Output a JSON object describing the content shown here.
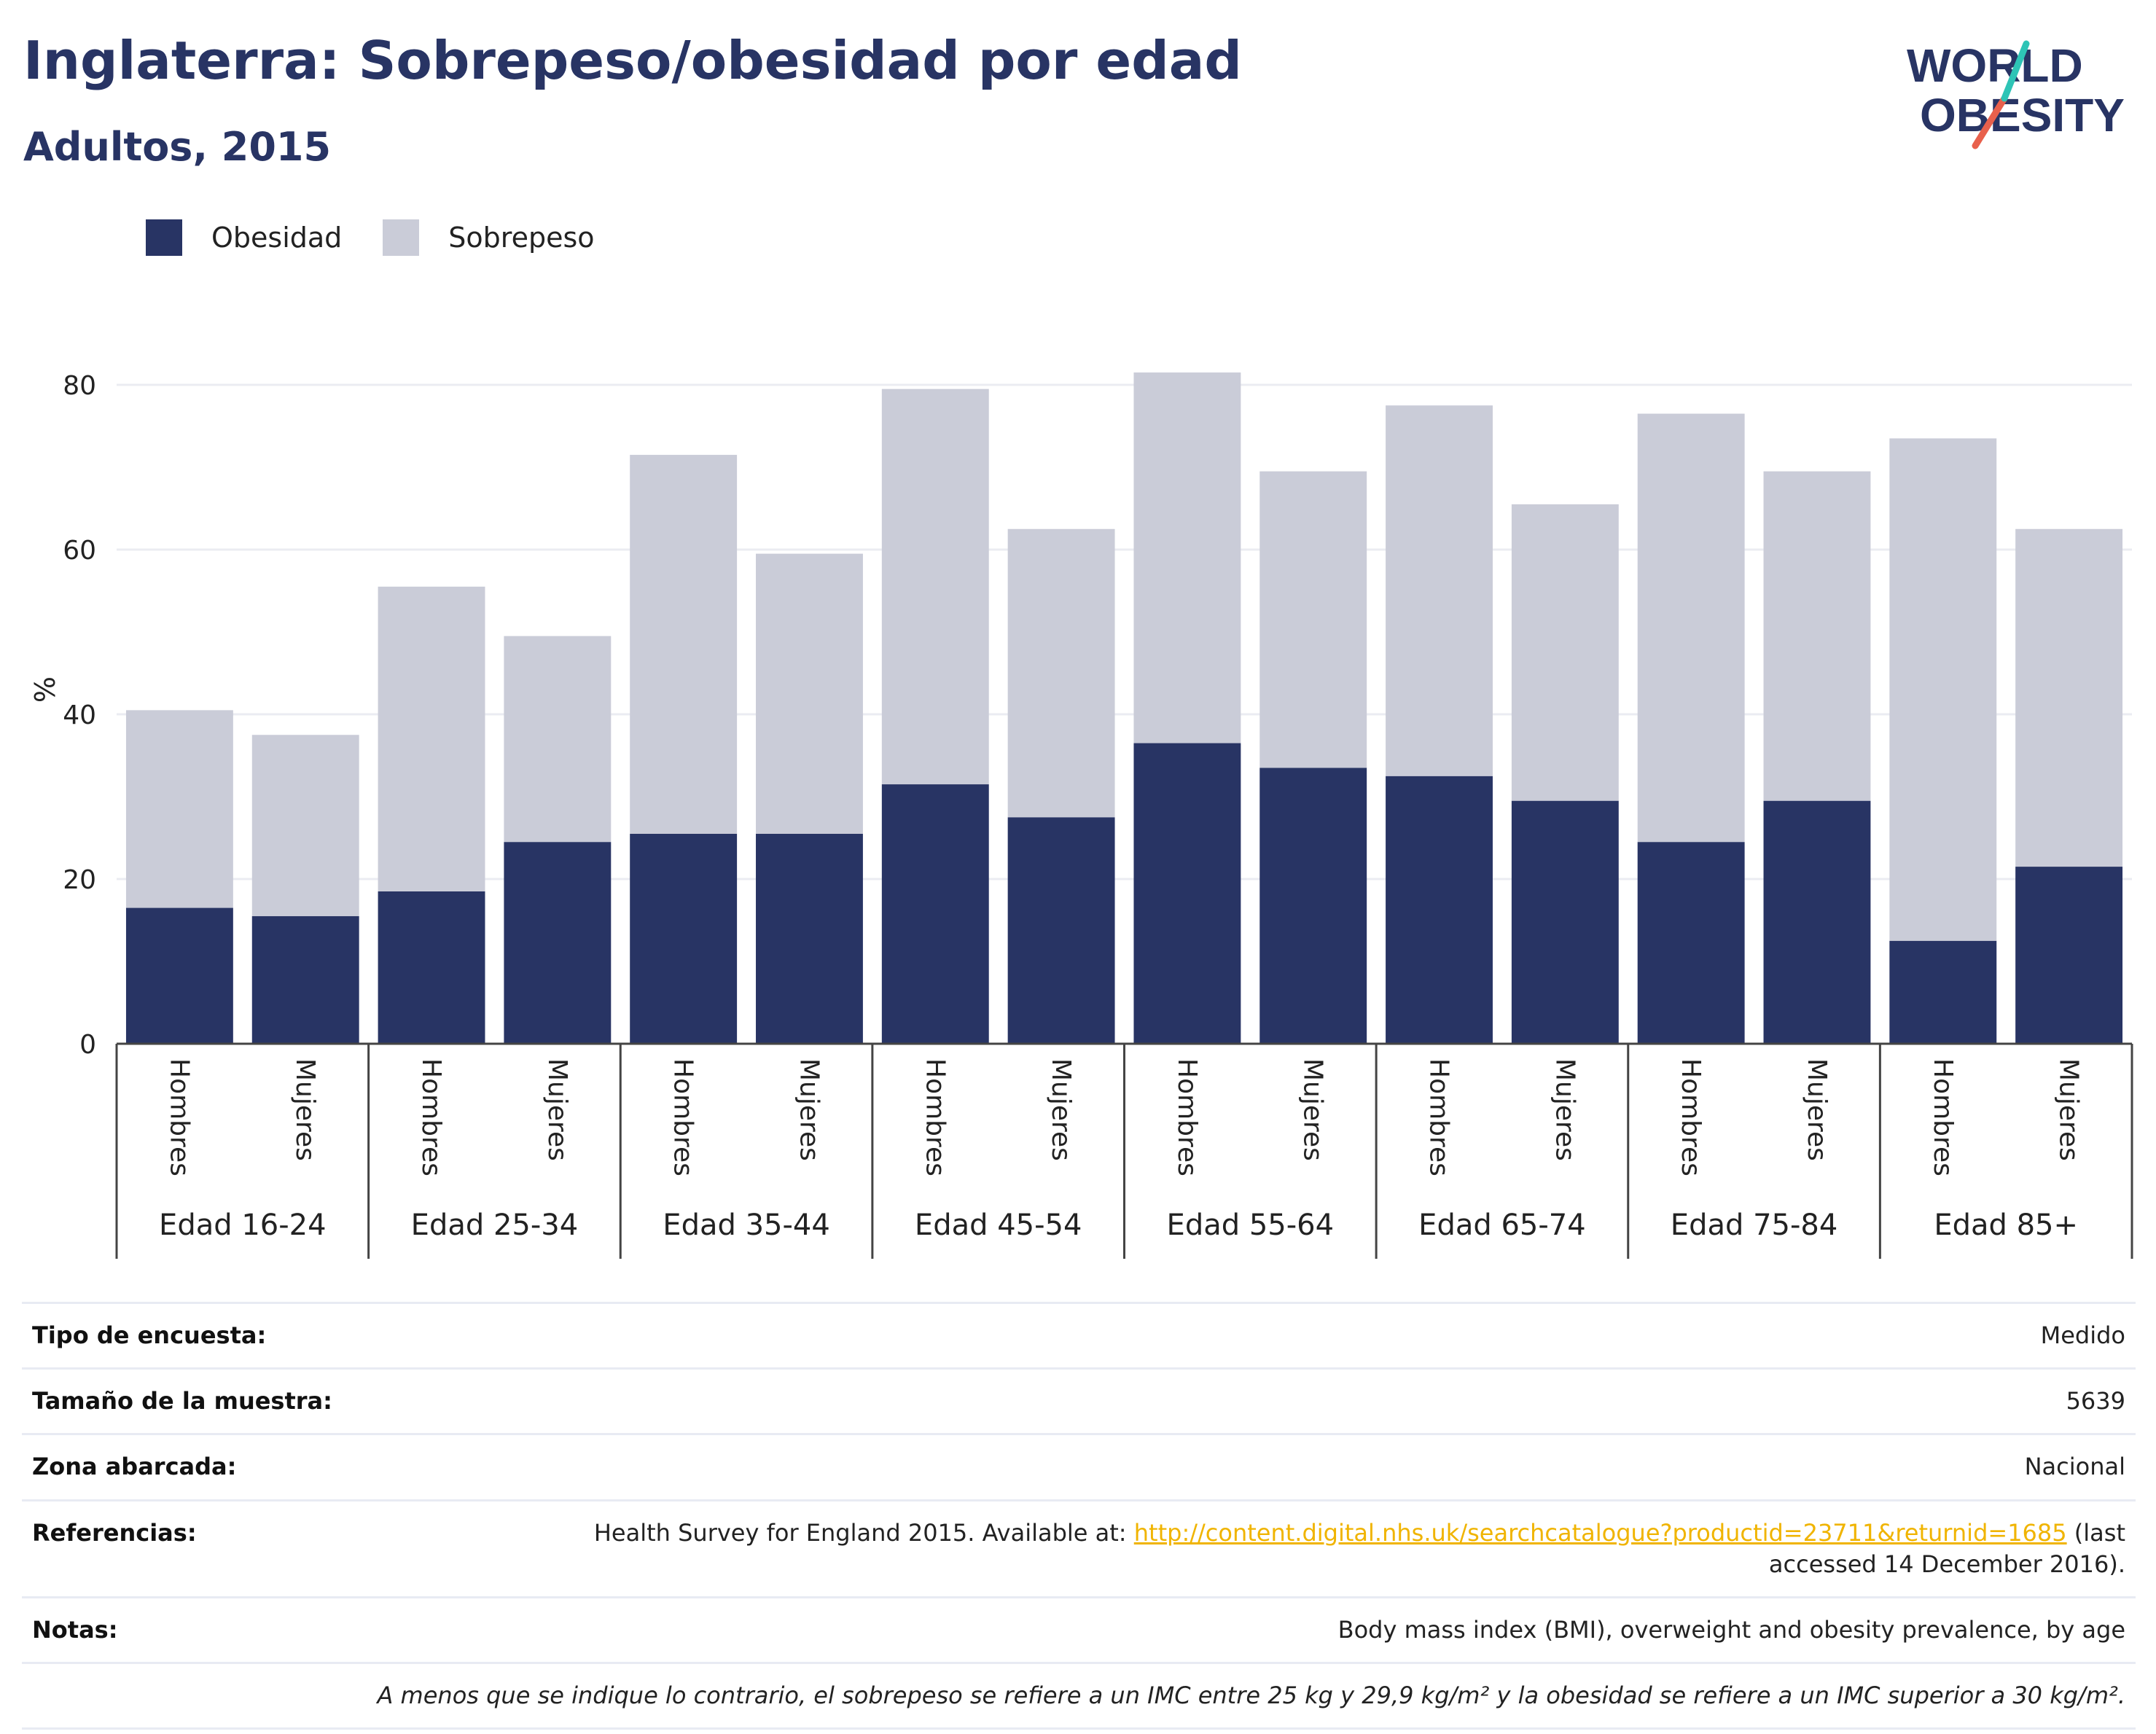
{
  "header": {
    "title": "Inglaterra: Sobrepeso/obesidad por edad",
    "subtitle": "Adultos, 2015"
  },
  "logo": {
    "line1": "WORLD",
    "line2": "OBESITY",
    "slash_colors": [
      "#2ec4b6",
      "#e8604c"
    ],
    "text_color": "#283464"
  },
  "colors": {
    "obesity": "#283464",
    "overweight": "#caccd8",
    "title": "#283464",
    "link": "#f0b400"
  },
  "chart_data": {
    "type": "bar",
    "stacked": true,
    "ylabel": "%",
    "ylim": [
      0,
      90
    ],
    "yticks": [
      0,
      20,
      40,
      60,
      80
    ],
    "grid": true,
    "legend_position": "top-left",
    "groups": [
      "Edad 16-24",
      "Edad 25-34",
      "Edad 35-44",
      "Edad 45-54",
      "Edad 55-64",
      "Edad 65-74",
      "Edad 75-84",
      "Edad 85+"
    ],
    "sexes": [
      "Hombres",
      "Mujeres"
    ],
    "series": [
      {
        "name": "Obesidad",
        "color": "#283464",
        "values": [
          16.5,
          15.5,
          18.5,
          24.5,
          25.5,
          25.5,
          31.5,
          27.5,
          36.5,
          33.5,
          32.5,
          29.5,
          24.5,
          29.5,
          12.5,
          21.5
        ]
      },
      {
        "name": "Sobrepeso",
        "color": "#caccd8",
        "values": [
          24,
          22,
          37,
          25,
          46,
          34,
          48,
          35,
          45,
          36,
          45,
          36,
          52,
          40,
          61,
          41
        ]
      }
    ]
  },
  "info": {
    "survey_type_label": "Tipo de encuesta:",
    "survey_type_value": "Medido",
    "sample_size_label": "Tamaño de la muestra:",
    "sample_size_value": "5639",
    "area_label": "Zona abarcada:",
    "area_value": "Nacional",
    "references_label": "Referencias:",
    "references_prefix": "Health Survey for England 2015. Available at: ",
    "references_link": "http://content.digital.nhs.uk/searchcatalogue?productid=23711&returnid=1685",
    "references_suffix": " (last accessed 14 December 2016).",
    "notes_label": "Notas:",
    "notes_value": "Body mass index (BMI), overweight and obesity prevalence, by age",
    "footnote": "A menos que se indique lo contrario, el sobrepeso se refiere a un IMC entre 25 kg y 29,9 kg/m² y la obesidad se refiere a un IMC superior a 30 kg/m²."
  }
}
